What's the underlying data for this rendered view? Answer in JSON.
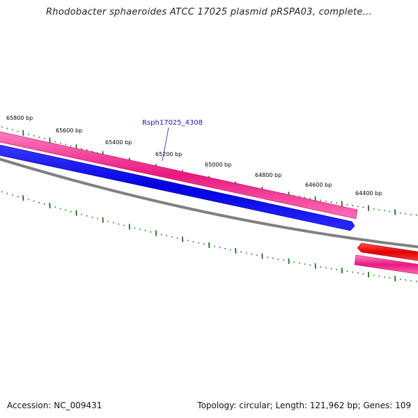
{
  "header": {
    "title": "Rhodobacter sphaeroides ATCC 17025 plasmid pRSPA03, complete..."
  },
  "map": {
    "ticks": [
      "65800 bp",
      "65600 bp",
      "65400 bp",
      "65200 bp",
      "65000 bp",
      "64800 bp",
      "64600 bp",
      "64400 bp"
    ],
    "gene_label": "Rsph17025_4308",
    "colors": {
      "forward_cds": "#e8197f",
      "reverse_cds": "#0000ee",
      "rna_feature": "#ee0000",
      "backbone": "#808080",
      "tick_marks": "#006600"
    }
  },
  "footer": {
    "accession": "Accession: NC_009431",
    "summary": "Topology: circular; Length: 121,962 bp; Genes: 109"
  }
}
